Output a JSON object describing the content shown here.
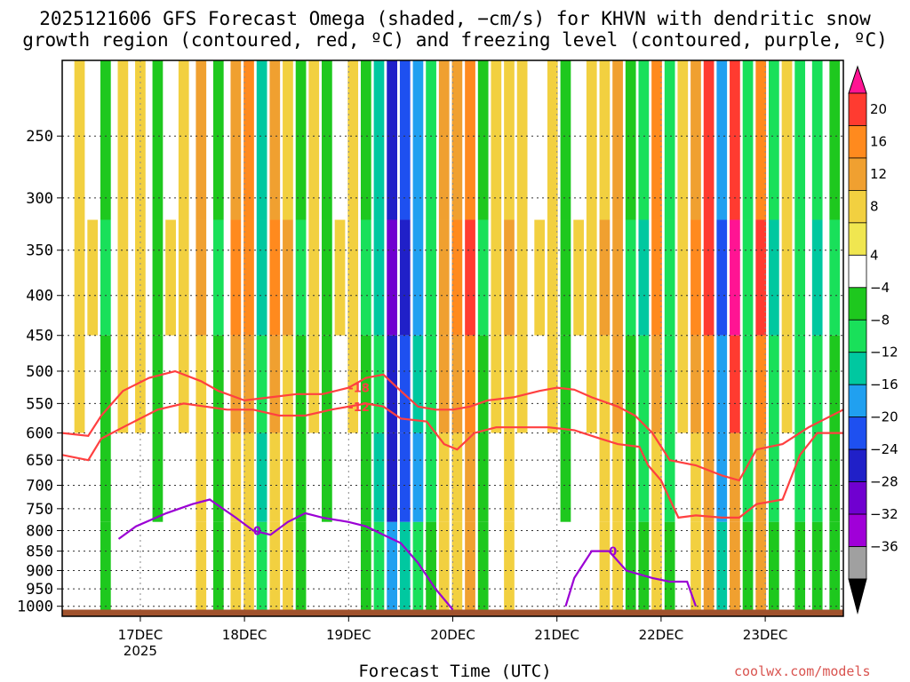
{
  "title_line1": "2025121606 GFS Forecast Omega (shaded, −cm/s) for KHVN with dendritic snow",
  "title_line2": "growth region (contoured, red, ºC) and freezing level (contoured, purple, ºC)",
  "xaxis_title": "Forecast Time (UTC)",
  "credit": "coolwx.com/models",
  "colors": {
    "dgz_contour": "#ff4040",
    "freezing_contour": "#9b00d4",
    "terrain": "#a0522d"
  },
  "chart_data": {
    "type": "heatmap",
    "title": "2025121606 GFS Forecast Omega (shaded, −cm/s) for KHVN with dendritic snow growth region (contoured, red, ºC) and freezing level (contoured, purple, ºC)",
    "xlabel": "Forecast Time (UTC)",
    "ylabel": "",
    "y_scale": "log-pressure (hPa), inverted",
    "y_ticks": [
      250,
      300,
      350,
      400,
      450,
      500,
      550,
      600,
      650,
      700,
      750,
      800,
      850,
      900,
      950,
      1000
    ],
    "y_range_hPa": [
      200,
      1030
    ],
    "x_ticks": [
      {
        "label": "17DEC",
        "sublabel": "2025",
        "hour": 18
      },
      {
        "label": "18DEC",
        "sublabel": "",
        "hour": 42
      },
      {
        "label": "19DEC",
        "sublabel": "",
        "hour": 66
      },
      {
        "label": "20DEC",
        "sublabel": "",
        "hour": 90
      },
      {
        "label": "21DEC",
        "sublabel": "",
        "hour": 114
      },
      {
        "label": "22DEC",
        "sublabel": "",
        "hour": 138
      },
      {
        "label": "23DEC",
        "sublabel": "",
        "hour": 162
      }
    ],
    "x_range_hours": [
      0,
      180
    ],
    "grid": true,
    "colorbar": {
      "labels": [
        "20",
        "16",
        "12",
        "8",
        "4",
        "−4",
        "−8",
        "−12",
        "−16",
        "−20",
        "−24",
        "−28",
        "−32",
        "−36"
      ],
      "colors": [
        "#ff1493",
        "#ff3b30",
        "#ff8a1e",
        "#f0a030",
        "#f2d040",
        "#f0e650",
        "#ffffff",
        "#1ec81e",
        "#19e05a",
        "#00c8a0",
        "#20a0f0",
        "#1e50f0",
        "#2020c8",
        "#7000d0",
        "#a000d8",
        "#a0a0a0",
        "#000000"
      ]
    },
    "omega_bands": [
      {
        "hour": 4,
        "value": 6
      },
      {
        "hour": 7,
        "value": 4
      },
      {
        "hour": 10,
        "value": -8
      },
      {
        "hour": 14,
        "value": 5
      },
      {
        "hour": 18,
        "value": 7
      },
      {
        "hour": 22,
        "value": -6
      },
      {
        "hour": 25,
        "value": 4
      },
      {
        "hour": 28,
        "value": 6
      },
      {
        "hour": 32,
        "value": 9
      },
      {
        "hour": 36,
        "value": -8
      },
      {
        "hour": 40,
        "value": 12
      },
      {
        "hour": 43,
        "value": 14
      },
      {
        "hour": 46,
        "value": -14
      },
      {
        "hour": 49,
        "value": 13
      },
      {
        "hour": 52,
        "value": 8
      },
      {
        "hour": 55,
        "value": -8
      },
      {
        "hour": 58,
        "value": 5
      },
      {
        "hour": 61,
        "value": -6
      },
      {
        "hour": 64,
        "value": 4
      },
      {
        "hour": 67,
        "value": 5
      },
      {
        "hour": 70,
        "value": -8
      },
      {
        "hour": 73,
        "value": -14
      },
      {
        "hour": 76,
        "value": -30
      },
      {
        "hour": 79,
        "value": -26
      },
      {
        "hour": 82,
        "value": -18
      },
      {
        "hour": 85,
        "value": -10
      },
      {
        "hour": 88,
        "value": 10
      },
      {
        "hour": 91,
        "value": 13
      },
      {
        "hour": 94,
        "value": 17
      },
      {
        "hour": 97,
        "value": -8
      },
      {
        "hour": 100,
        "value": 6
      },
      {
        "hour": 103,
        "value": 8
      },
      {
        "hour": 106,
        "value": 6
      },
      {
        "hour": 110,
        "value": 4
      },
      {
        "hour": 113,
        "value": 5
      },
      {
        "hour": 116,
        "value": -6
      },
      {
        "hour": 119,
        "value": 4
      },
      {
        "hour": 122,
        "value": 6
      },
      {
        "hour": 125,
        "value": 8
      },
      {
        "hour": 128,
        "value": 10
      },
      {
        "hour": 131,
        "value": -8
      },
      {
        "hour": 134,
        "value": -12
      },
      {
        "hour": 137,
        "value": 14
      },
      {
        "hour": 140,
        "value": -10
      },
      {
        "hour": 143,
        "value": 6
      },
      {
        "hour": 146,
        "value": 12
      },
      {
        "hour": 149,
        "value": 18
      },
      {
        "hour": 152,
        "value": -22
      },
      {
        "hour": 155,
        "value": 22
      },
      {
        "hour": 158,
        "value": -10
      },
      {
        "hour": 161,
        "value": 16
      },
      {
        "hour": 164,
        "value": -12
      },
      {
        "hour": 167,
        "value": 6
      },
      {
        "hour": 170,
        "value": -10
      },
      {
        "hour": 174,
        "value": -12
      },
      {
        "hour": 178,
        "value": -8
      }
    ],
    "contours": {
      "dgz_minus12": {
        "label": "-12",
        "points": [
          [
            0,
            640
          ],
          [
            6,
            650
          ],
          [
            9,
            610
          ],
          [
            14,
            590
          ],
          [
            22,
            560
          ],
          [
            28,
            550
          ],
          [
            33,
            555
          ],
          [
            38,
            560
          ],
          [
            44,
            560
          ],
          [
            50,
            570
          ],
          [
            56,
            570
          ],
          [
            62,
            560
          ],
          [
            66,
            555
          ],
          [
            70,
            550
          ],
          [
            74,
            555
          ],
          [
            78,
            575
          ],
          [
            84,
            580
          ],
          [
            88,
            620
          ],
          [
            91,
            630
          ],
          [
            95,
            600
          ],
          [
            100,
            590
          ],
          [
            106,
            590
          ],
          [
            112,
            590
          ],
          [
            118,
            595
          ],
          [
            124,
            610
          ],
          [
            128,
            620
          ],
          [
            133,
            625
          ],
          [
            135,
            660
          ],
          [
            138,
            690
          ],
          [
            142,
            770
          ],
          [
            146,
            765
          ],
          [
            152,
            770
          ],
          [
            156,
            770
          ],
          [
            160,
            740
          ],
          [
            166,
            730
          ],
          [
            170,
            640
          ],
          [
            174,
            600
          ],
          [
            180,
            600
          ]
        ]
      },
      "dgz_minus18": {
        "label": "-18",
        "points": [
          [
            0,
            600
          ],
          [
            6,
            605
          ],
          [
            9,
            570
          ],
          [
            14,
            530
          ],
          [
            20,
            510
          ],
          [
            26,
            500
          ],
          [
            32,
            515
          ],
          [
            36,
            530
          ],
          [
            42,
            545
          ],
          [
            48,
            540
          ],
          [
            54,
            535
          ],
          [
            60,
            535
          ],
          [
            66,
            525
          ],
          [
            70,
            510
          ],
          [
            74,
            505
          ],
          [
            78,
            530
          ],
          [
            82,
            555
          ],
          [
            86,
            560
          ],
          [
            90,
            560
          ],
          [
            94,
            555
          ],
          [
            98,
            545
          ],
          [
            104,
            540
          ],
          [
            110,
            530
          ],
          [
            114,
            525
          ],
          [
            118,
            528
          ],
          [
            122,
            540
          ],
          [
            128,
            555
          ],
          [
            132,
            570
          ],
          [
            136,
            600
          ],
          [
            140,
            650
          ],
          [
            146,
            660
          ],
          [
            152,
            680
          ],
          [
            156,
            690
          ],
          [
            160,
            630
          ],
          [
            166,
            620
          ],
          [
            172,
            590
          ],
          [
            180,
            560
          ]
        ]
      },
      "freezing_0": {
        "label": "0",
        "points": [
          [
            13,
            820
          ],
          [
            17,
            790
          ],
          [
            24,
            760
          ],
          [
            30,
            740
          ],
          [
            34,
            730
          ],
          [
            40,
            770
          ],
          [
            44,
            800
          ],
          [
            48,
            810
          ],
          [
            52,
            780
          ],
          [
            56,
            760
          ],
          [
            60,
            770
          ],
          [
            66,
            780
          ],
          [
            70,
            790
          ],
          [
            74,
            810
          ],
          [
            78,
            830
          ],
          [
            82,
            880
          ],
          [
            86,
            950
          ],
          [
            90,
            1010
          ]
        ]
      },
      "freezing_0_right": {
        "label": "0",
        "points": [
          [
            116,
            1000
          ],
          [
            118,
            920
          ],
          [
            122,
            850
          ],
          [
            126,
            850
          ],
          [
            130,
            900
          ],
          [
            136,
            920
          ],
          [
            140,
            930
          ],
          [
            144,
            930
          ],
          [
            146,
            1000
          ]
        ]
      }
    },
    "terrain_hPa": 1010
  }
}
